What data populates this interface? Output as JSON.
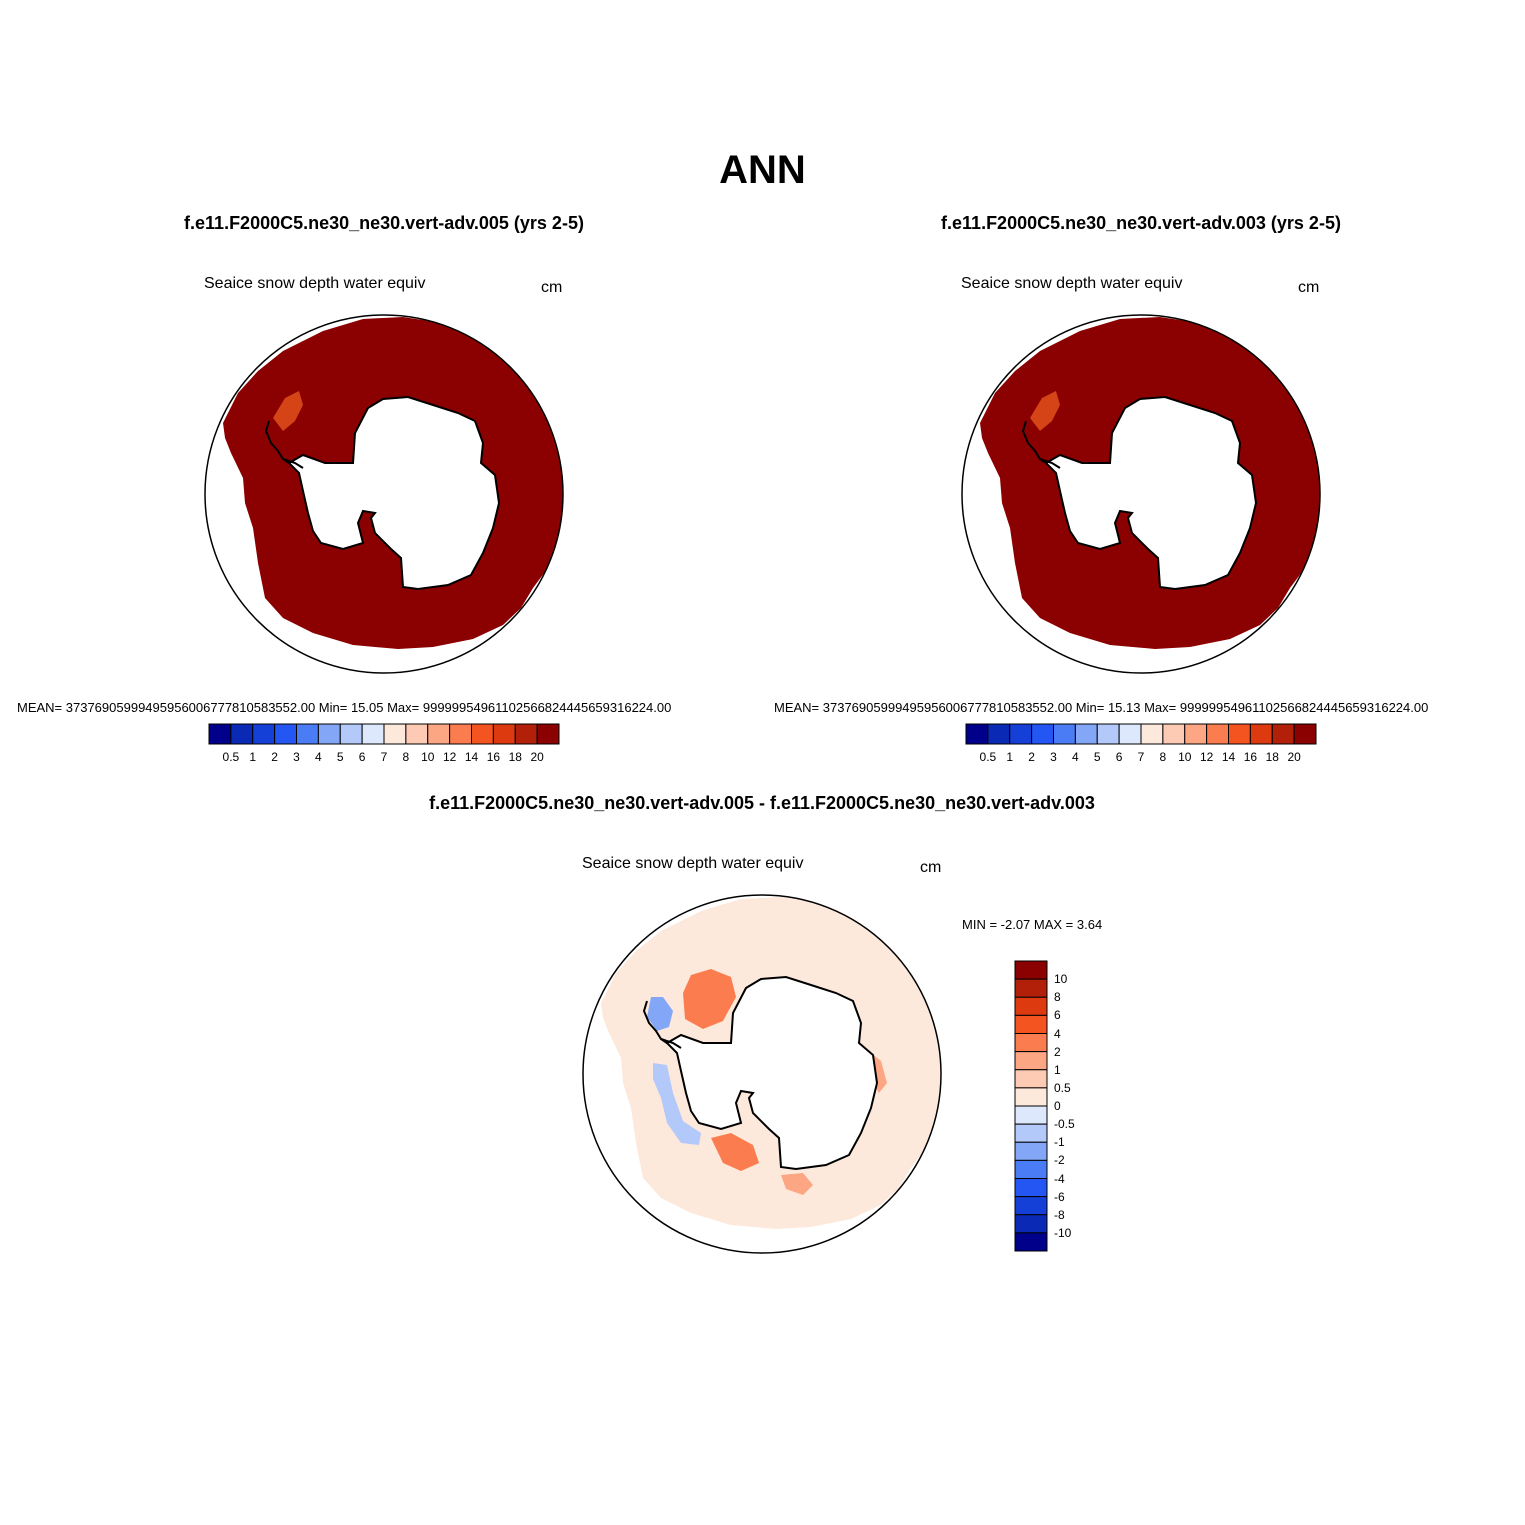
{
  "title": "ANN",
  "panels": [
    {
      "case_title": "f.e11.F2000C5.ne30_ne30.vert-adv.005 (yrs 2-5)",
      "variable": "Seaice snow depth water equiv",
      "units": "cm",
      "stats": "MEAN= 37376905999495956006777810583552.00  Min=  15.05  Max= 99999954961102566824445659316224.00"
    },
    {
      "case_title": "f.e11.F2000C5.ne30_ne30.vert-adv.003 (yrs 2-5)",
      "variable": "Seaice snow depth water equiv",
      "units": "cm",
      "stats": "MEAN= 37376905999495956006777810583552.00  Min=  15.13  Max= 99999954961102566824445659316224.00"
    }
  ],
  "diff_panel": {
    "case_title": "f.e11.F2000C5.ne30_ne30.vert-adv.005 - f.e11.F2000C5.ne30_ne30.vert-adv.003",
    "variable": "Seaice snow depth water equiv",
    "units": "cm",
    "stats": "MIN =  -2.07 MAX =   3.64"
  },
  "colorbar_abs": {
    "colors": [
      "#00008b",
      "#0a2ab5",
      "#1440d8",
      "#2356f2",
      "#4a7cf5",
      "#84a6f7",
      "#b3c9f9",
      "#dde8fc",
      "#fde9dc",
      "#fdcab3",
      "#fca684",
      "#fb7d4f",
      "#f4541f",
      "#dd3a10",
      "#b22009",
      "#8b0000"
    ],
    "labels": [
      "0.5",
      "1",
      "2",
      "3",
      "4",
      "5",
      "6",
      "7",
      "8",
      "10",
      "12",
      "14",
      "16",
      "18",
      "20"
    ]
  },
  "colorbar_diff": {
    "colors": [
      "#8b0000",
      "#b22009",
      "#dd3a10",
      "#f4541f",
      "#fb7d4f",
      "#fca684",
      "#fdcab3",
      "#fde9dc",
      "#dde8fc",
      "#b3c9f9",
      "#84a6f7",
      "#4a7cf5",
      "#2356f2",
      "#1440d8",
      "#0a2ab5",
      "#00008b"
    ],
    "labels": [
      "10",
      "8",
      "6",
      "4",
      "2",
      "1",
      "0.5",
      "0",
      "-0.5",
      "-1",
      "-2",
      "-4",
      "-6",
      "-8",
      "-10"
    ]
  },
  "map_colors": {
    "abs_fill": "#8b0000",
    "abs_patch": "#e0501a",
    "diff_base": "#fde9dc",
    "diff_pos": "#fb7d4f",
    "diff_pos_light": "#fca684",
    "diff_neg": "#84a6f7",
    "diff_neg_light": "#b3c9f9"
  }
}
